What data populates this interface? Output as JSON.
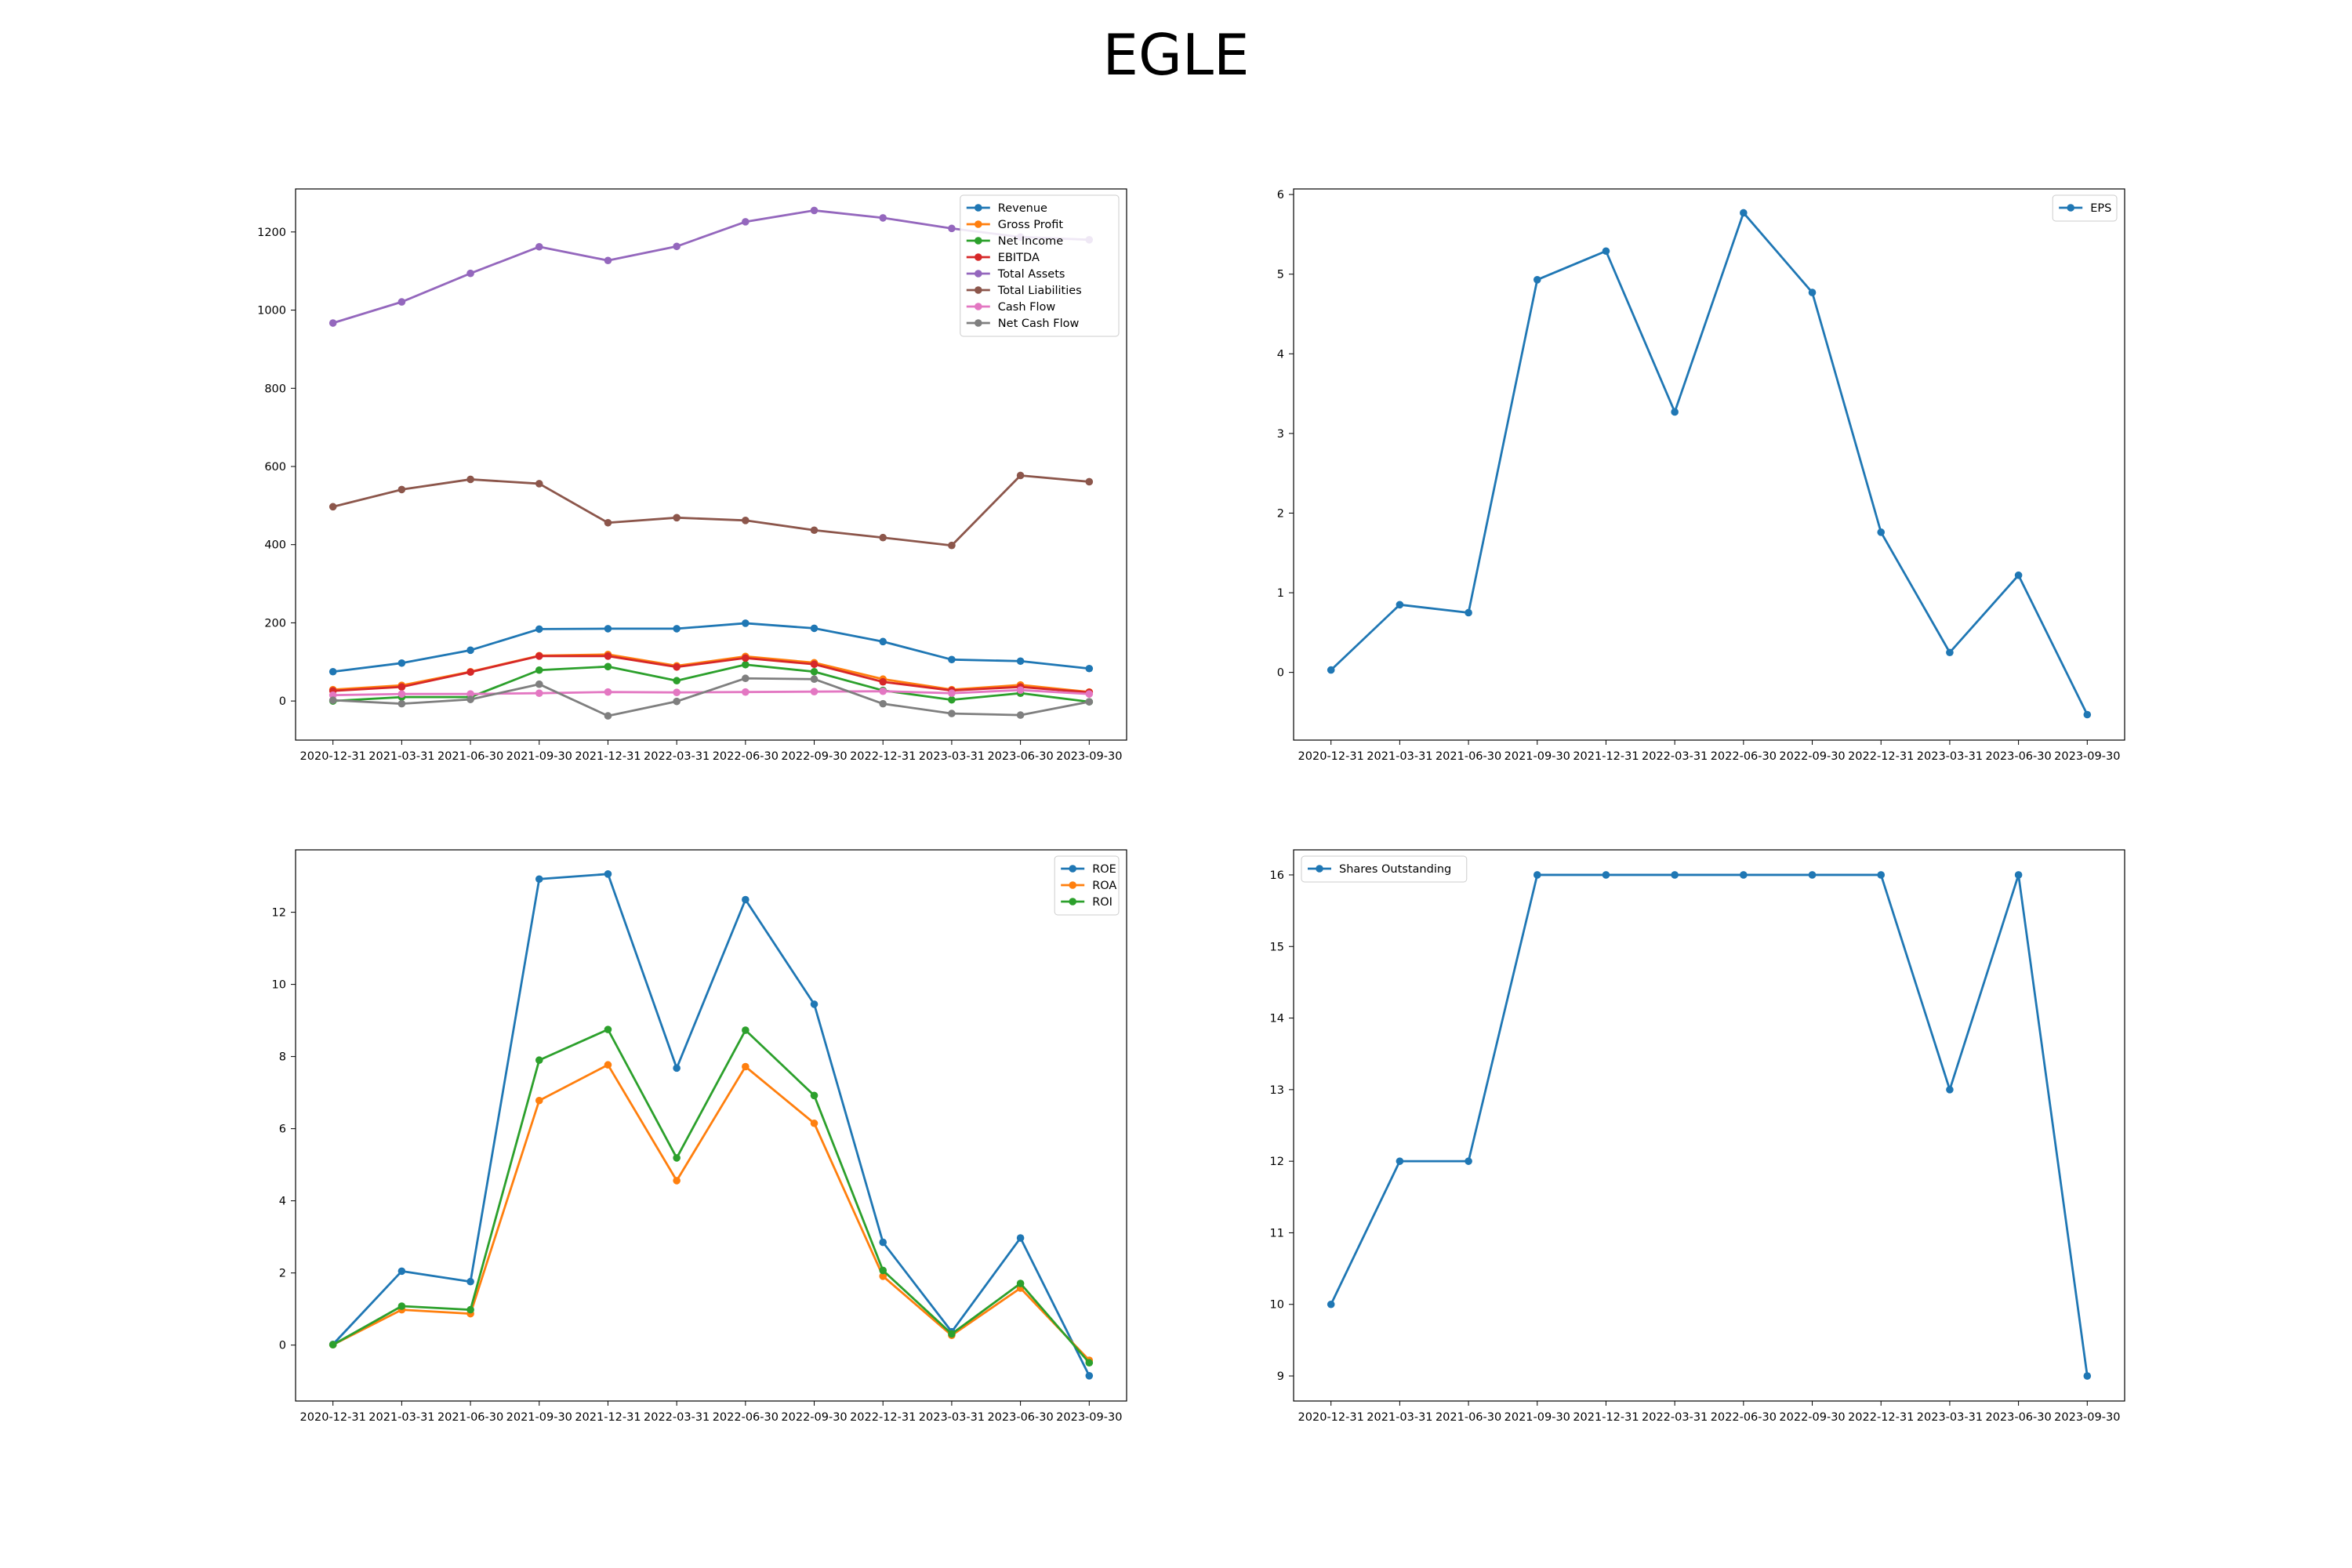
{
  "figure": {
    "title": "EGLE"
  },
  "chart_data": [
    {
      "type": "line",
      "title": "",
      "xlabel": "",
      "ylabel": "",
      "x": [
        "2020-12-31",
        "2021-03-31",
        "2021-06-30",
        "2021-09-30",
        "2021-12-31",
        "2022-03-31",
        "2022-06-30",
        "2022-09-30",
        "2022-12-31",
        "2023-03-31",
        "2023-06-30",
        "2023-09-30"
      ],
      "ylim": [
        -100,
        1310
      ],
      "yticks": [
        0,
        200,
        400,
        600,
        800,
        1000,
        1200
      ],
      "legend_position": "upper-right",
      "grid": false,
      "series": [
        {
          "name": "Revenue",
          "color": "#1f77b4",
          "values": [
            75,
            97,
            130,
            184,
            185,
            185,
            199,
            186,
            152,
            106,
            102,
            83
          ]
        },
        {
          "name": "Gross Profit",
          "color": "#ff7f0e",
          "values": [
            29,
            40,
            75,
            116,
            119,
            90,
            114,
            98,
            56,
            29,
            41,
            23
          ]
        },
        {
          "name": "Net Income",
          "color": "#2ca02c",
          "values": [
            0,
            10,
            10,
            79,
            88,
            52,
            93,
            75,
            27,
            3,
            20,
            -2
          ]
        },
        {
          "name": "EBITDA",
          "color": "#d62728",
          "values": [
            26,
            36,
            74,
            115,
            115,
            87,
            110,
            94,
            49,
            27,
            36,
            22
          ]
        },
        {
          "name": "Total Assets",
          "color": "#9467bd",
          "values": [
            967,
            1021,
            1094,
            1162,
            1127,
            1163,
            1226,
            1255,
            1236,
            1209,
            1187,
            1180
          ]
        },
        {
          "name": "Total Liabilities",
          "color": "#8c564b",
          "values": [
            497,
            541,
            567,
            556,
            456,
            469,
            462,
            437,
            418,
            398,
            577,
            561
          ]
        },
        {
          "name": "Cash Flow",
          "color": "#e377c2",
          "values": [
            15,
            18,
            18,
            20,
            23,
            22,
            23,
            24,
            25,
            20,
            28,
            18
          ]
        },
        {
          "name": "Net Cash Flow",
          "color": "#7f7f7f",
          "values": [
            2,
            -7,
            4,
            43,
            -38,
            -1,
            58,
            56,
            -7,
            -32,
            -36,
            -2
          ]
        }
      ]
    },
    {
      "type": "line",
      "title": "",
      "xlabel": "",
      "ylabel": "",
      "x": [
        "2020-12-31",
        "2021-03-31",
        "2021-06-30",
        "2021-09-30",
        "2021-12-31",
        "2022-03-31",
        "2022-06-30",
        "2022-09-30",
        "2022-12-31",
        "2023-03-31",
        "2023-06-30",
        "2023-09-30"
      ],
      "ylim": [
        -0.85,
        6.07
      ],
      "yticks": [
        0,
        1,
        2,
        3,
        4,
        5,
        6
      ],
      "legend_position": "upper-right",
      "grid": false,
      "series": [
        {
          "name": "EPS",
          "color": "#1f77b4",
          "values": [
            0.03,
            0.85,
            0.75,
            4.93,
            5.29,
            3.27,
            5.77,
            4.77,
            1.76,
            0.25,
            1.22,
            -0.53
          ]
        }
      ]
    },
    {
      "type": "line",
      "title": "",
      "xlabel": "",
      "ylabel": "",
      "x": [
        "2020-12-31",
        "2021-03-31",
        "2021-06-30",
        "2021-09-30",
        "2021-12-31",
        "2022-03-31",
        "2022-06-30",
        "2022-09-30",
        "2022-12-31",
        "2023-03-31",
        "2023-06-30",
        "2023-09-30"
      ],
      "ylim": [
        -1.55,
        13.73
      ],
      "yticks": [
        0,
        2,
        4,
        6,
        8,
        10,
        12
      ],
      "legend_position": "upper-right",
      "grid": false,
      "series": [
        {
          "name": "ROE",
          "color": "#1f77b4",
          "values": [
            0.02,
            2.05,
            1.76,
            12.92,
            13.06,
            7.68,
            12.35,
            9.45,
            2.85,
            0.37,
            2.97,
            -0.85
          ]
        },
        {
          "name": "ROA",
          "color": "#ff7f0e",
          "values": [
            0.01,
            0.98,
            0.87,
            6.78,
            7.77,
            4.56,
            7.72,
            6.15,
            1.91,
            0.27,
            1.58,
            -0.42
          ]
        },
        {
          "name": "ROI",
          "color": "#2ca02c",
          "values": [
            0.01,
            1.08,
            0.98,
            7.9,
            8.75,
            5.19,
            8.73,
            6.92,
            2.07,
            0.31,
            1.71,
            -0.49
          ]
        }
      ]
    },
    {
      "type": "line",
      "title": "",
      "xlabel": "",
      "ylabel": "",
      "x": [
        "2020-12-31",
        "2021-03-31",
        "2021-06-30",
        "2021-09-30",
        "2021-12-31",
        "2022-03-31",
        "2022-06-30",
        "2022-09-30",
        "2022-12-31",
        "2023-03-31",
        "2023-06-30",
        "2023-09-30"
      ],
      "ylim": [
        8.65,
        16.35
      ],
      "yticks": [
        9,
        10,
        11,
        12,
        13,
        14,
        15,
        16
      ],
      "legend_position": "upper-left",
      "grid": false,
      "series": [
        {
          "name": "Shares Outstanding",
          "color": "#1f77b4",
          "values": [
            10,
            12,
            12,
            16,
            16,
            16,
            16,
            16,
            16,
            13,
            16,
            9
          ]
        }
      ]
    }
  ]
}
